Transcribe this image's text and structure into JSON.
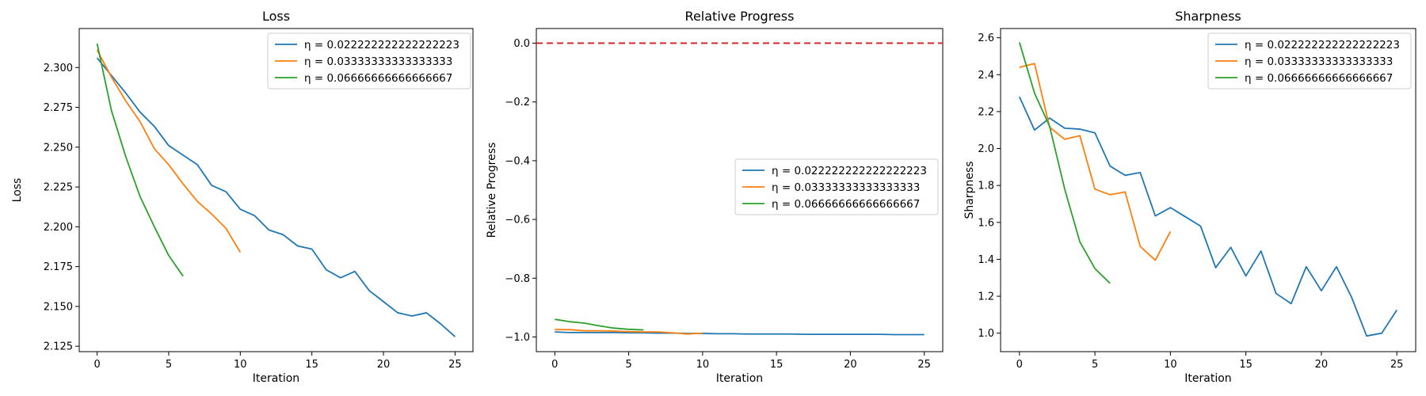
{
  "chart_data": [
    {
      "type": "line",
      "title": "Loss",
      "xlabel": "Iteration",
      "ylabel": "Loss",
      "xlim": [
        -1.25,
        26.25
      ],
      "ylim": [
        2.1216,
        2.3245
      ],
      "xticks": [
        0,
        5,
        10,
        15,
        20,
        25
      ],
      "yticks": [
        2.125,
        2.15,
        2.175,
        2.2,
        2.225,
        2.25,
        2.275,
        2.3
      ],
      "ytick_labels": [
        "2.125",
        "2.150",
        "2.175",
        "2.200",
        "2.225",
        "2.250",
        "2.275",
        "2.300"
      ],
      "legend_position": "top-right",
      "series": [
        {
          "name": "η = 0.022222222222222223",
          "color": "#1f77b4",
          "values": [
            2.306,
            2.295,
            2.284,
            2.272,
            2.263,
            2.251,
            2.245,
            2.239,
            2.226,
            2.222,
            2.211,
            2.207,
            2.198,
            2.195,
            2.188,
            2.186,
            2.173,
            2.168,
            2.172,
            2.16,
            2.153,
            2.146,
            2.144,
            2.146,
            2.139,
            2.131
          ]
        },
        {
          "name": "η = 0.03333333333333333",
          "color": "#ff7f0e",
          "values": [
            2.311,
            2.294,
            2.279,
            2.266,
            2.249,
            2.239,
            2.227,
            2.216,
            2.208,
            2.199,
            2.184
          ]
        },
        {
          "name": "η = 0.06666666666666667",
          "color": "#2ca02c",
          "values": [
            2.315,
            2.273,
            2.244,
            2.219,
            2.2,
            2.182,
            2.169
          ]
        }
      ]
    },
    {
      "type": "line",
      "title": "Relative Progress",
      "xlabel": "Iteration",
      "ylabel": "Relative Progress",
      "xlim": [
        -1.25,
        26.25
      ],
      "ylim": [
        -1.05,
        0.05
      ],
      "xticks": [
        0,
        5,
        10,
        15,
        20,
        25
      ],
      "yticks": [
        -1.0,
        -0.8,
        -0.6,
        -0.4,
        -0.2,
        0.0
      ],
      "ytick_labels": [
        "−1.0",
        "−0.8",
        "−0.6",
        "−0.4",
        "−0.2",
        "0.0"
      ],
      "reference_line": {
        "y": 0.0,
        "color": "#d62728",
        "style": "dashed"
      },
      "legend_position": "center-right",
      "series": [
        {
          "name": "η = 0.022222222222222223",
          "color": "#1f77b4",
          "values": [
            -0.983,
            -0.985,
            -0.985,
            -0.985,
            -0.985,
            -0.986,
            -0.986,
            -0.987,
            -0.987,
            -0.988,
            -0.988,
            -0.989,
            -0.989,
            -0.99,
            -0.99,
            -0.99,
            -0.99,
            -0.991,
            -0.991,
            -0.991,
            -0.991,
            -0.991,
            -0.991,
            -0.992,
            -0.992,
            -0.992
          ]
        },
        {
          "name": "η = 0.03333333333333333",
          "color": "#ff7f0e",
          "values": [
            -0.975,
            -0.975,
            -0.979,
            -0.979,
            -0.98,
            -0.982,
            -0.983,
            -0.983,
            -0.986,
            -0.99,
            -0.987
          ]
        },
        {
          "name": "η = 0.06666666666666667",
          "color": "#2ca02c",
          "values": [
            -0.94,
            -0.948,
            -0.953,
            -0.962,
            -0.97,
            -0.974,
            -0.976
          ]
        }
      ]
    },
    {
      "type": "line",
      "title": "Sharpness",
      "xlabel": "Iteration",
      "ylabel": "Sharpness",
      "xlim": [
        -1.25,
        26.25
      ],
      "ylim": [
        0.9,
        2.65
      ],
      "xticks": [
        0,
        5,
        10,
        15,
        20,
        25
      ],
      "yticks": [
        1.0,
        1.2,
        1.4,
        1.6,
        1.8,
        2.0,
        2.2,
        2.4,
        2.6
      ],
      "ytick_labels": [
        "1.0",
        "1.2",
        "1.4",
        "1.6",
        "1.8",
        "2.0",
        "2.2",
        "2.4",
        "2.6"
      ],
      "legend_position": "top-right",
      "series": [
        {
          "name": "η = 0.022222222222222223",
          "color": "#1f77b4",
          "values": [
            2.28,
            2.1,
            2.165,
            2.11,
            2.105,
            2.085,
            1.905,
            1.855,
            1.87,
            1.635,
            1.68,
            1.63,
            1.58,
            1.355,
            1.465,
            1.31,
            1.445,
            1.215,
            1.16,
            1.36,
            1.23,
            1.36,
            1.195,
            0.985,
            1.0,
            1.125
          ]
        },
        {
          "name": "η = 0.03333333333333333",
          "color": "#ff7f0e",
          "values": [
            2.44,
            2.46,
            2.115,
            2.05,
            2.07,
            1.78,
            1.75,
            1.765,
            1.47,
            1.395,
            1.55
          ]
        },
        {
          "name": "η = 0.06666666666666667",
          "color": "#2ca02c",
          "values": [
            2.575,
            2.3,
            2.12,
            1.78,
            1.495,
            1.35,
            1.27
          ]
        }
      ]
    }
  ]
}
